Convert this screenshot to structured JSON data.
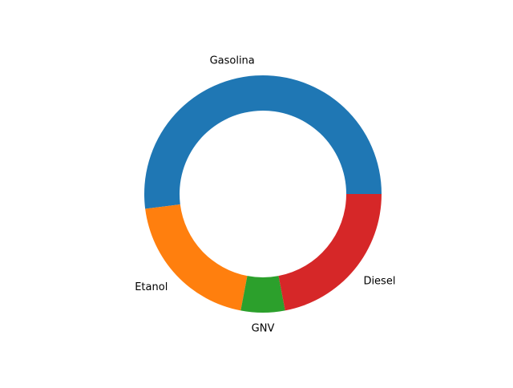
{
  "chart_data": {
    "type": "pie",
    "style": "donut",
    "title": "",
    "categories": [
      "Gasolina",
      "Etanol",
      "GNV",
      "Diesel"
    ],
    "values": [
      52,
      20,
      6,
      22
    ],
    "unit": "percent",
    "start_angle_deg": 0,
    "direction": "counterclockwise",
    "legend": "none",
    "colors": [
      "#1f77b4",
      "#ff7f0e",
      "#2ca02c",
      "#d62728"
    ]
  }
}
